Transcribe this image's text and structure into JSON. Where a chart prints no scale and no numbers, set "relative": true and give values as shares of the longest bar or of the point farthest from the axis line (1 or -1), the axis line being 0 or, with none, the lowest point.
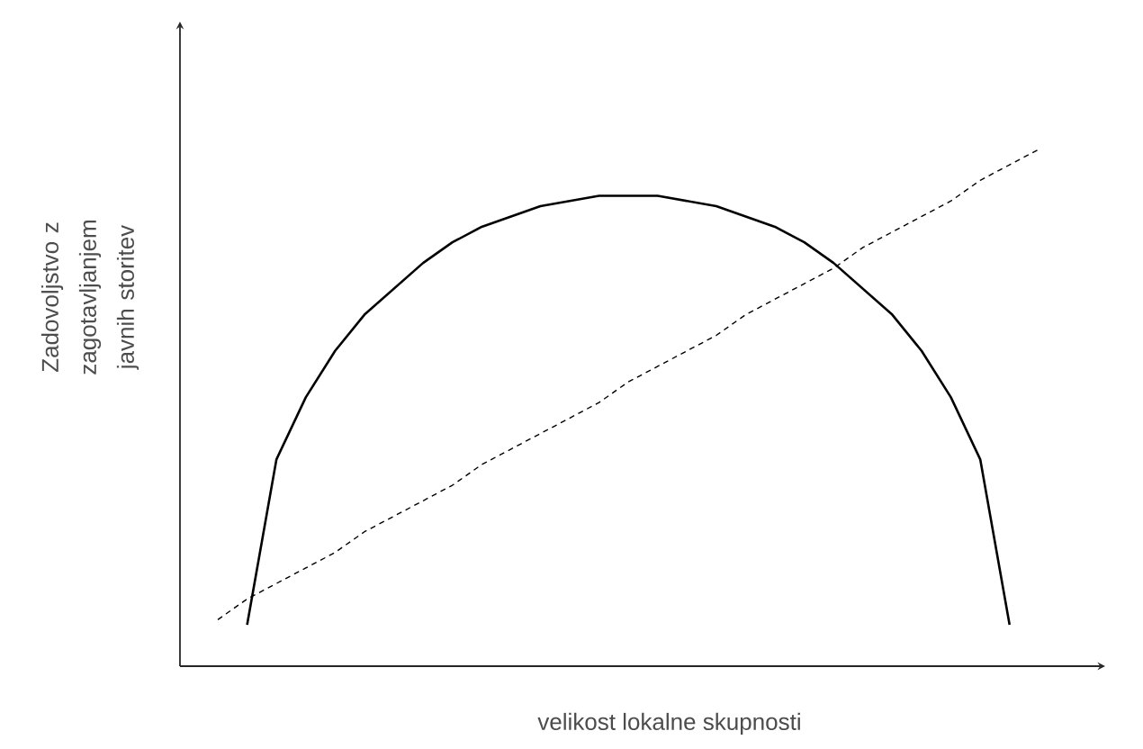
{
  "chart_data": {
    "type": "line",
    "relative": true,
    "xlabel": "velikost lokalne skupnosti",
    "ylabel": "Zadovoljstvo z zagotavljanjem javnih storitev",
    "categories": [
      null,
      null,
      null,
      null,
      null,
      null,
      null,
      null,
      null,
      null,
      null,
      null,
      null,
      null,
      null,
      null,
      null,
      null,
      null,
      null,
      null,
      null,
      null,
      null,
      null,
      null,
      null,
      null,
      null
    ],
    "series": [
      {
        "color": "#000000",
        "line_style": "solid",
        "values": [
          null,
          0.08,
          0.4,
          0.52,
          0.61,
          0.68,
          0.73,
          0.78,
          0.82,
          0.85,
          0.87,
          0.89,
          0.9,
          0.91,
          0.91,
          0.91,
          0.9,
          0.89,
          0.87,
          0.85,
          0.82,
          0.78,
          0.73,
          0.68,
          0.61,
          0.52,
          0.4,
          0.08,
          null
        ]
      },
      {
        "color": "#000000",
        "line_style": "dashed",
        "values": [
          0.09,
          0.13,
          0.16,
          0.19,
          0.22,
          0.26,
          0.29,
          0.32,
          0.35,
          0.39,
          0.42,
          0.45,
          0.48,
          0.51,
          0.55,
          0.58,
          0.61,
          0.64,
          0.68,
          0.71,
          0.74,
          0.77,
          0.81,
          0.84,
          0.87,
          0.9,
          0.94,
          0.97,
          1.0
        ]
      }
    ]
  }
}
